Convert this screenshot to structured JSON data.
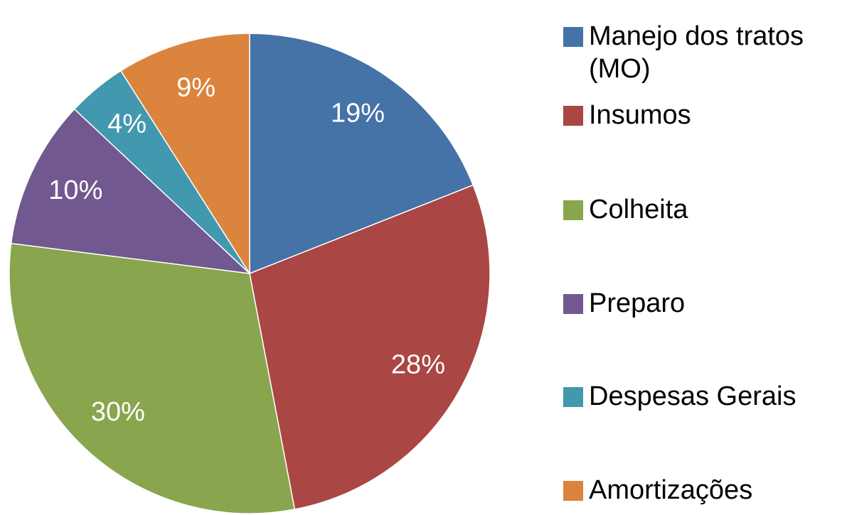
{
  "chart_data": {
    "type": "pie",
    "categories": [
      "Manejo dos tratos (MO)",
      "Insumos",
      "Colheita",
      "Preparo",
      "Despesas Gerais",
      "Amortizações"
    ],
    "values": [
      19,
      28,
      30,
      10,
      4,
      9
    ],
    "value_labels": [
      "19%",
      "28%",
      "30%",
      "10%",
      "4%",
      "9%"
    ],
    "colors": [
      "#4572a7",
      "#aa4643",
      "#89a54e",
      "#71588f",
      "#4198af",
      "#db843d"
    ],
    "legend": "right"
  }
}
